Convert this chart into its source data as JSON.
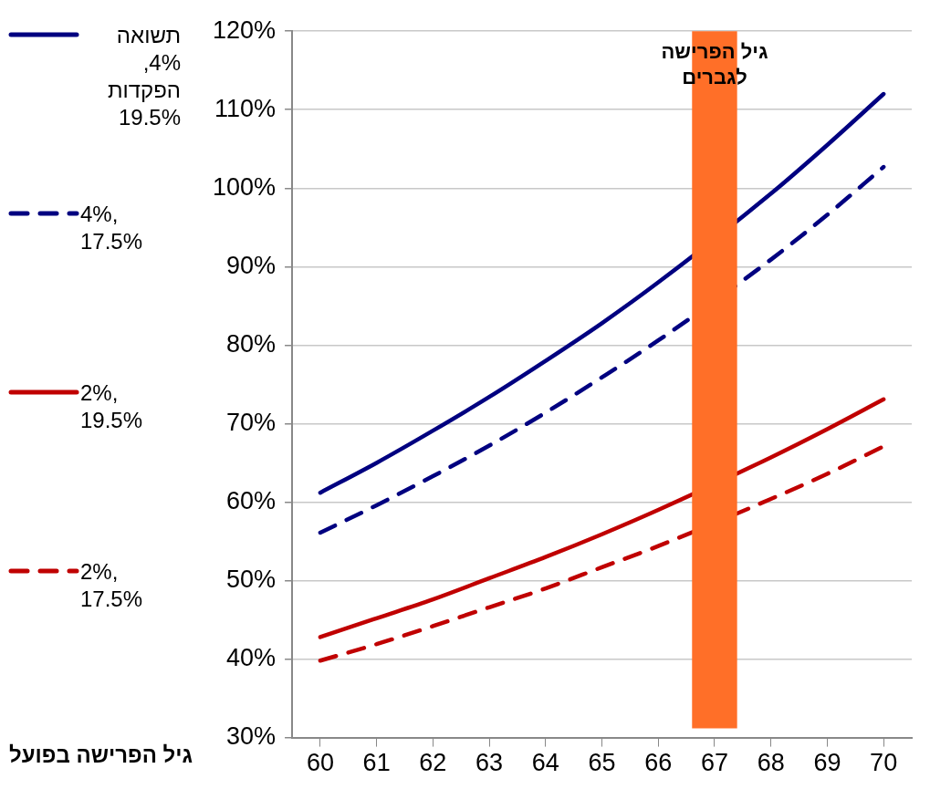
{
  "chart_data": {
    "type": "line",
    "xlabel": "גיל הפרישה בפועל",
    "x": [
      60,
      61,
      62,
      63,
      64,
      65,
      66,
      67,
      68,
      69,
      70
    ],
    "xlim": [
      59.5,
      70.5
    ],
    "xticks": [
      60,
      61,
      62,
      63,
      64,
      65,
      66,
      67,
      68,
      69,
      70
    ],
    "ylim": [
      30,
      120
    ],
    "yticks": [
      {
        "value": 30,
        "label": "30%"
      },
      {
        "value": 40,
        "label": "40%"
      },
      {
        "value": 50,
        "label": "50%"
      },
      {
        "value": 60,
        "label": "60%"
      },
      {
        "value": 70,
        "label": "70%"
      },
      {
        "value": 80,
        "label": "80%"
      },
      {
        "value": 90,
        "label": "90%"
      },
      {
        "value": 100,
        "label": "100%"
      },
      {
        "value": 110,
        "label": "110%"
      },
      {
        "value": 120,
        "label": "120%"
      }
    ],
    "grid": "y",
    "legend": "left",
    "marker": "none",
    "series": [
      {
        "name": "תשואה 4%, הפקדות 19.5%",
        "color": "#000080",
        "line_style": "solid",
        "values": [
          61.2,
          65.0,
          69.1,
          73.4,
          78.0,
          82.8,
          88.0,
          null,
          99.3,
          105.5,
          112.0
        ]
      },
      {
        "name": "4%, 17.5%",
        "color": "#000080",
        "line_style": "dashed",
        "values": [
          56.1,
          59.6,
          63.3,
          67.2,
          71.4,
          75.9,
          80.6,
          null,
          90.9,
          96.6,
          102.7
        ]
      },
      {
        "name": "2%, 19.5%",
        "color": "#c00000",
        "line_style": "solid",
        "values": [
          42.8,
          45.2,
          47.6,
          50.3,
          53.0,
          55.9,
          59.0,
          null,
          65.7,
          69.3,
          73.1
        ]
      },
      {
        "name": "2%, 17.5%",
        "color": "#c00000",
        "line_style": "dashed",
        "values": [
          39.8,
          41.9,
          44.2,
          46.6,
          49.0,
          51.7,
          54.4,
          null,
          60.4,
          63.6,
          67.1
        ]
      }
    ],
    "bands": [
      {
        "axis": "x",
        "from": 66.6,
        "to": 67.4,
        "label": "גיל הפרישה לגברים",
        "color": "#ff6f28"
      }
    ]
  }
}
